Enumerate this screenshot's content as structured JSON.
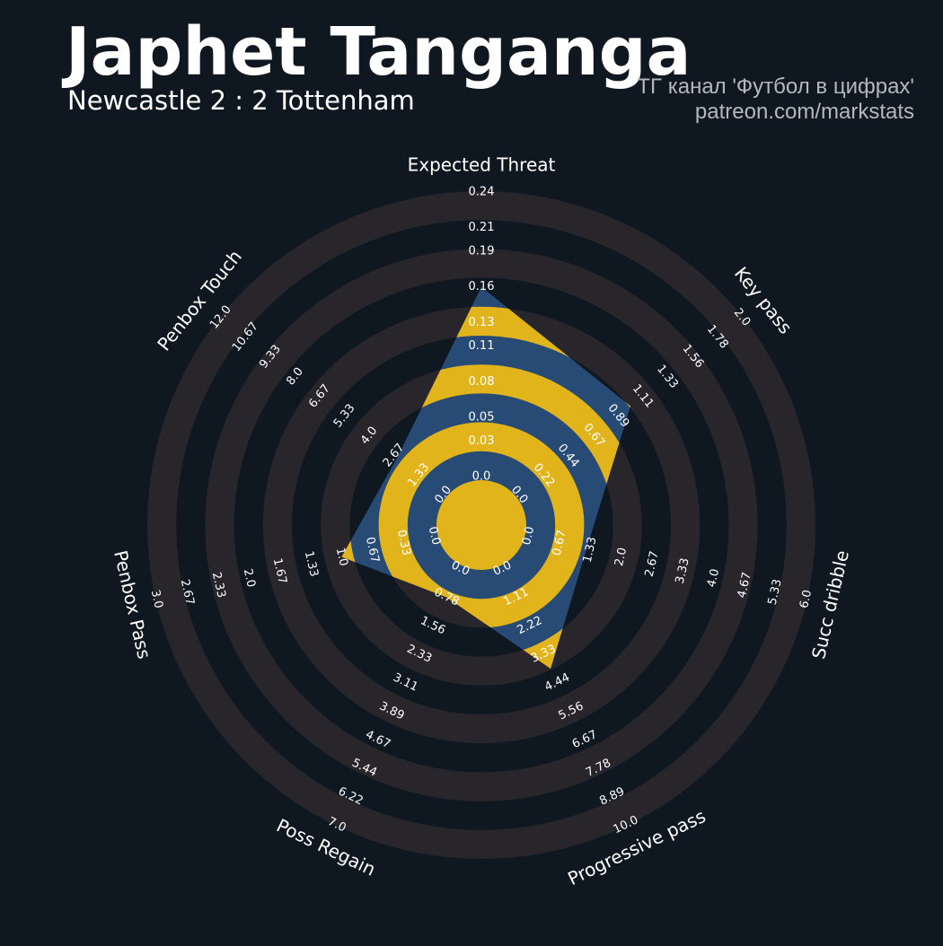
{
  "chart_data": {
    "type": "radar",
    "title": "Japhet Tanganga",
    "subtitle": "Newcastle 2 : 2 Tottenham",
    "credits": [
      "ТГ канал 'Футбол в цифрах'",
      "patreon.com/markstats"
    ],
    "colors": {
      "background": "#0f1820",
      "ring": "#28252b",
      "radar": "#284b75",
      "radar_alt": "#e2b41c"
    },
    "axes": [
      {
        "name": "Expected Threat",
        "value": 0.16,
        "lim": [
          0,
          0.24
        ],
        "ticks": [
          {
            "value": 0,
            "label": "0.0"
          },
          0.03,
          0.05,
          0.08,
          0.11,
          0.13,
          0.16,
          0.19,
          0.21,
          0.24
        ]
      },
      {
        "name": "Key pass",
        "value": 1.0,
        "lim": [
          0,
          2
        ],
        "ticks": [
          {
            "value": 0,
            "label": "0.0"
          },
          0.22,
          0.44,
          0.67,
          0.89,
          1.11,
          1.33,
          1.56,
          1.78,
          {
            "value": 2,
            "label": "2.0"
          }
        ]
      },
      {
        "name": "Succ dribble",
        "value": 1.25,
        "lim": [
          0,
          6
        ],
        "ticks": [
          {
            "value": 0,
            "label": "0.0"
          },
          0.67,
          1.33,
          {
            "value": 2,
            "label": "2.0"
          },
          2.67,
          3.33,
          {
            "value": 4,
            "label": "4.0"
          },
          4.67,
          5.33,
          {
            "value": 6,
            "label": "6.0"
          }
        ]
      },
      {
        "name": "Progressive pass",
        "value": 3.9,
        "lim": [
          0,
          10
        ],
        "ticks": [
          {
            "value": 0,
            "label": "0.0"
          },
          1.11,
          2.22,
          3.33,
          4.44,
          5.56,
          6.67,
          7.78,
          8.89,
          {
            "value": 10,
            "label": "10.0"
          }
        ]
      },
      {
        "name": "Poss Regain",
        "value": 0.78,
        "lim": [
          0,
          7
        ],
        "ticks": [
          {
            "value": 0,
            "label": "0.0"
          },
          0.78,
          1.56,
          2.33,
          3.11,
          3.89,
          4.67,
          5.44,
          6.22,
          {
            "value": 7,
            "label": "7.0"
          }
        ]
      },
      {
        "name": "Penbox Pass",
        "value": 1.0,
        "lim": [
          0,
          3
        ],
        "ticks": [
          {
            "value": 0,
            "label": "0.0"
          },
          0.33,
          0.67,
          {
            "value": 1,
            "label": "1.0"
          },
          1.33,
          1.67,
          {
            "value": 2,
            "label": "2.0"
          },
          2.33,
          2.67,
          {
            "value": 3,
            "label": "3.0"
          }
        ]
      },
      {
        "name": "Penbox Touch",
        "value": 2.5,
        "lim": [
          0,
          12
        ],
        "ticks": [
          {
            "value": 0,
            "label": "0.0"
          },
          1.33,
          2.67,
          {
            "value": 4,
            "label": "4.0"
          },
          5.33,
          6.67,
          {
            "value": 8,
            "label": "8.0"
          },
          9.33,
          10.67,
          {
            "value": 12,
            "label": "12.0"
          }
        ]
      }
    ]
  }
}
